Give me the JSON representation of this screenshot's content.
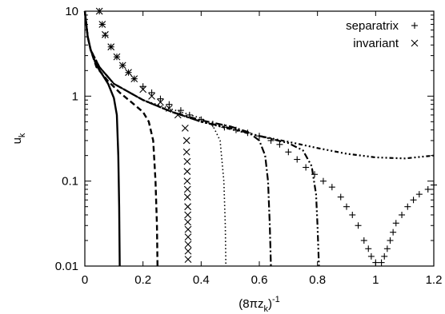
{
  "chart_data": {
    "type": "line",
    "xlabel": {
      "base": "(8πz",
      "sub": "k",
      "close": ")",
      "sup": "-1"
    },
    "ylabel": {
      "base": "u",
      "sub": "k"
    },
    "xlim": [
      0,
      1.2
    ],
    "ylim": [
      0.01,
      10
    ],
    "yscale": "log",
    "xticks": [
      {
        "value": 0,
        "label": "0"
      },
      {
        "value": 0.2,
        "label": "0.2"
      },
      {
        "value": 0.4,
        "label": "0.4"
      },
      {
        "value": 0.6,
        "label": "0.6"
      },
      {
        "value": 0.8,
        "label": "0.8"
      },
      {
        "value": 1,
        "label": "1"
      },
      {
        "value": 1.2,
        "label": "1.2"
      }
    ],
    "yticks": [
      {
        "value": 0.01,
        "label": "0.01"
      },
      {
        "value": 0.1,
        "label": "0.1"
      },
      {
        "value": 1,
        "label": "1"
      },
      {
        "value": 10,
        "label": "10"
      }
    ],
    "grid": false,
    "legend": {
      "position": "top-right",
      "entries": [
        {
          "label": "separatrix",
          "marker": "plus"
        },
        {
          "label": "invariant",
          "marker": "cross"
        }
      ]
    },
    "lines": [
      {
        "style": "solid",
        "points": [
          [
            0,
            10
          ],
          [
            0.005,
            7
          ],
          [
            0.01,
            5
          ],
          [
            0.02,
            3.5
          ],
          [
            0.04,
            2.3
          ],
          [
            0.06,
            1.8
          ],
          [
            0.08,
            1.4
          ],
          [
            0.1,
            0.95
          ],
          [
            0.11,
            0.6
          ],
          [
            0.115,
            0.2
          ],
          [
            0.118,
            0.05
          ],
          [
            0.12,
            0.01
          ]
        ]
      },
      {
        "style": "dash",
        "points": [
          [
            0,
            10
          ],
          [
            0.01,
            5
          ],
          [
            0.02,
            3.5
          ],
          [
            0.04,
            2.2
          ],
          [
            0.08,
            1.5
          ],
          [
            0.12,
            1.1
          ],
          [
            0.16,
            0.85
          ],
          [
            0.2,
            0.65
          ],
          [
            0.22,
            0.5
          ],
          [
            0.235,
            0.3
          ],
          [
            0.243,
            0.1
          ],
          [
            0.248,
            0.03
          ],
          [
            0.25,
            0.01
          ]
        ]
      },
      {
        "style": "dot",
        "points": [
          [
            0,
            10
          ],
          [
            0.01,
            5
          ],
          [
            0.02,
            3.5
          ],
          [
            0.05,
            2.2
          ],
          [
            0.1,
            1.4
          ],
          [
            0.2,
            0.9
          ],
          [
            0.3,
            0.7
          ],
          [
            0.4,
            0.55
          ],
          [
            0.44,
            0.45
          ],
          [
            0.465,
            0.3
          ],
          [
            0.478,
            0.1
          ],
          [
            0.483,
            0.03
          ],
          [
            0.485,
            0.01
          ]
        ]
      },
      {
        "style": "dashdot",
        "points": [
          [
            0,
            10
          ],
          [
            0.01,
            5
          ],
          [
            0.02,
            3.5
          ],
          [
            0.05,
            2.2
          ],
          [
            0.1,
            1.4
          ],
          [
            0.2,
            0.9
          ],
          [
            0.3,
            0.65
          ],
          [
            0.4,
            0.52
          ],
          [
            0.5,
            0.44
          ],
          [
            0.56,
            0.38
          ],
          [
            0.6,
            0.3
          ],
          [
            0.62,
            0.2
          ],
          [
            0.63,
            0.1
          ],
          [
            0.636,
            0.03
          ],
          [
            0.64,
            0.01
          ]
        ]
      },
      {
        "style": "dashdotdot",
        "points": [
          [
            0,
            10
          ],
          [
            0.01,
            5
          ],
          [
            0.02,
            3.5
          ],
          [
            0.05,
            2.2
          ],
          [
            0.1,
            1.4
          ],
          [
            0.2,
            0.9
          ],
          [
            0.3,
            0.65
          ],
          [
            0.4,
            0.5
          ],
          [
            0.5,
            0.42
          ],
          [
            0.6,
            0.34
          ],
          [
            0.7,
            0.28
          ],
          [
            0.75,
            0.23
          ],
          [
            0.78,
            0.15
          ],
          [
            0.795,
            0.07
          ],
          [
            0.8,
            0.03
          ],
          [
            0.805,
            0.01
          ]
        ]
      },
      {
        "style": "dashdotdotdot",
        "points": [
          [
            0,
            10
          ],
          [
            0.01,
            5
          ],
          [
            0.02,
            3.5
          ],
          [
            0.05,
            2.2
          ],
          [
            0.1,
            1.4
          ],
          [
            0.2,
            0.9
          ],
          [
            0.3,
            0.65
          ],
          [
            0.4,
            0.5
          ],
          [
            0.5,
            0.41
          ],
          [
            0.6,
            0.34
          ],
          [
            0.7,
            0.29
          ],
          [
            0.8,
            0.245
          ],
          [
            0.9,
            0.21
          ],
          [
            1.0,
            0.19
          ],
          [
            1.1,
            0.185
          ],
          [
            1.2,
            0.2
          ]
        ]
      }
    ],
    "markers": [
      {
        "shape": "cross",
        "points": [
          [
            0.05,
            10
          ],
          [
            0.06,
            7
          ],
          [
            0.07,
            5.3
          ],
          [
            0.09,
            3.8
          ],
          [
            0.11,
            2.9
          ],
          [
            0.13,
            2.3
          ],
          [
            0.15,
            1.9
          ],
          [
            0.17,
            1.6
          ],
          [
            0.2,
            1.2
          ],
          [
            0.23,
            1.0
          ],
          [
            0.26,
            0.85
          ],
          [
            0.29,
            0.72
          ],
          [
            0.32,
            0.6
          ],
          [
            0.345,
            0.42
          ],
          [
            0.35,
            0.3
          ],
          [
            0.35,
            0.22
          ],
          [
            0.352,
            0.17
          ],
          [
            0.352,
            0.13
          ],
          [
            0.352,
            0.1
          ],
          [
            0.353,
            0.08
          ],
          [
            0.353,
            0.065
          ],
          [
            0.354,
            0.05
          ],
          [
            0.354,
            0.04
          ],
          [
            0.354,
            0.033
          ],
          [
            0.355,
            0.027
          ],
          [
            0.355,
            0.022
          ],
          [
            0.355,
            0.018
          ],
          [
            0.355,
            0.015
          ],
          [
            0.355,
            0.012
          ]
        ]
      },
      {
        "shape": "plus",
        "points": [
          [
            0.05,
            10
          ],
          [
            0.06,
            7
          ],
          [
            0.07,
            5.2
          ],
          [
            0.09,
            3.8
          ],
          [
            0.11,
            2.9
          ],
          [
            0.13,
            2.3
          ],
          [
            0.15,
            1.9
          ],
          [
            0.17,
            1.6
          ],
          [
            0.2,
            1.3
          ],
          [
            0.23,
            1.1
          ],
          [
            0.26,
            0.93
          ],
          [
            0.29,
            0.8
          ],
          [
            0.33,
            0.68
          ],
          [
            0.36,
            0.6
          ],
          [
            0.4,
            0.53
          ],
          [
            0.44,
            0.47
          ],
          [
            0.48,
            0.43
          ],
          [
            0.52,
            0.4
          ],
          [
            0.56,
            0.37
          ],
          [
            0.6,
            0.34
          ],
          [
            0.64,
            0.3
          ],
          [
            0.67,
            0.27
          ],
          [
            0.7,
            0.22
          ],
          [
            0.73,
            0.18
          ],
          [
            0.76,
            0.145
          ],
          [
            0.79,
            0.12
          ],
          [
            0.82,
            0.1
          ],
          [
            0.85,
            0.085
          ],
          [
            0.88,
            0.065
          ],
          [
            0.9,
            0.05
          ],
          [
            0.92,
            0.04
          ],
          [
            0.94,
            0.03
          ],
          [
            0.96,
            0.02
          ],
          [
            0.975,
            0.016
          ],
          [
            0.985,
            0.013
          ],
          [
            1.0,
            0.011
          ],
          [
            1.02,
            0.011
          ],
          [
            1.03,
            0.013
          ],
          [
            1.04,
            0.016
          ],
          [
            1.05,
            0.02
          ],
          [
            1.06,
            0.025
          ],
          [
            1.07,
            0.032
          ],
          [
            1.09,
            0.04
          ],
          [
            1.11,
            0.05
          ],
          [
            1.13,
            0.06
          ],
          [
            1.15,
            0.07
          ],
          [
            1.18,
            0.08
          ],
          [
            1.2,
            0.09
          ]
        ]
      }
    ]
  }
}
